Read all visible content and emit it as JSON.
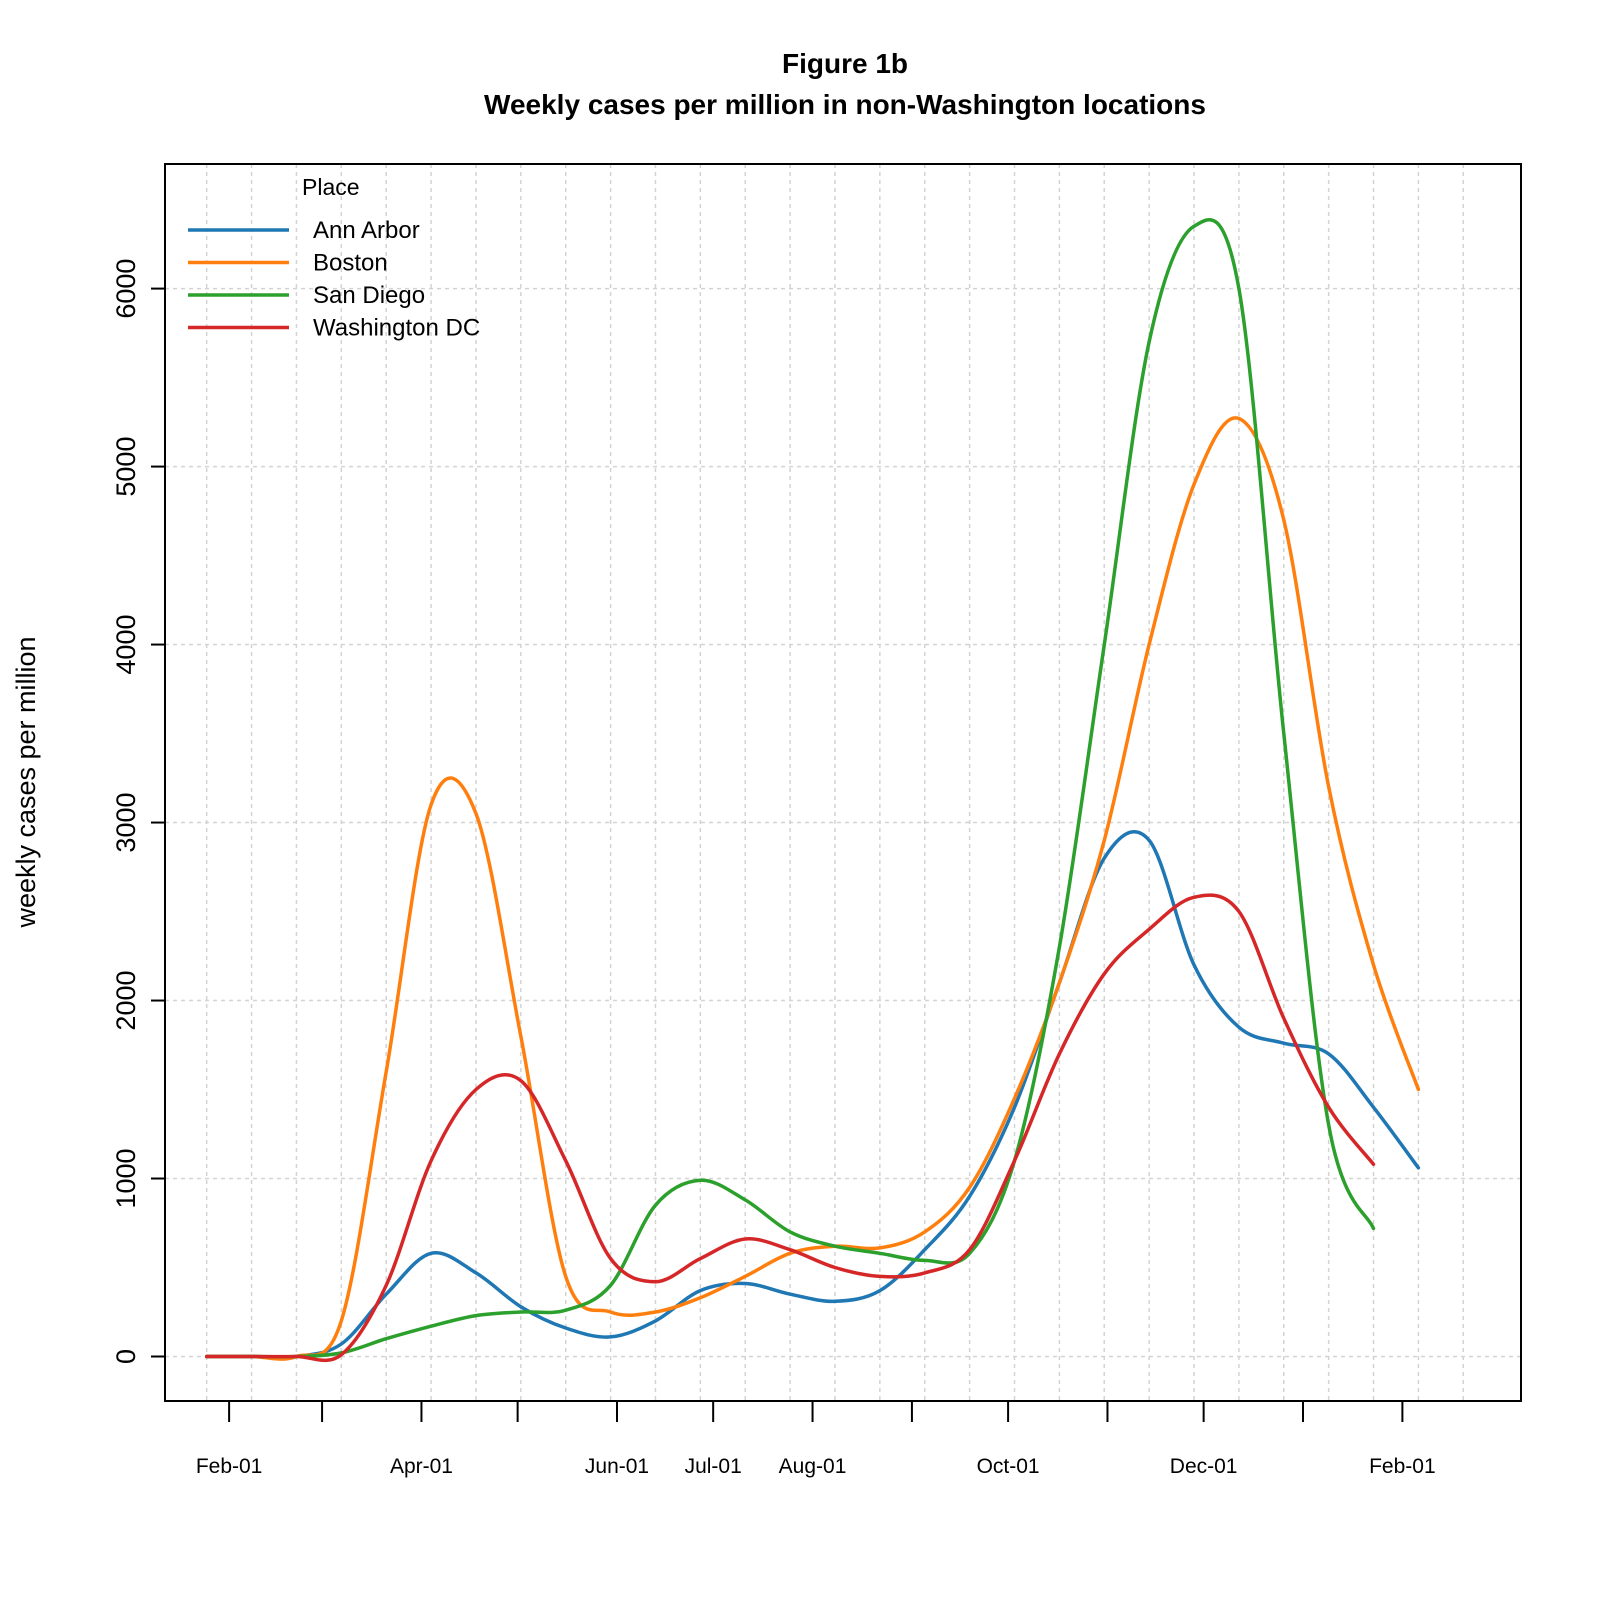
{
  "chart_data": {
    "type": "line",
    "title": "Figure 1b",
    "subtitle": "Weekly cases per million in non-Washington locations",
    "xlabel": "",
    "ylabel": "weekly cases per million",
    "x_tick_labels": [
      "Feb-01",
      "Apr-01",
      "Jun-01",
      "Jul-01",
      "Aug-01",
      "Oct-01",
      "Dec-01",
      "Feb-01"
    ],
    "y_ticks": [
      0,
      1000,
      2000,
      3000,
      4000,
      5000,
      6000
    ],
    "ylim": [
      -250,
      6700
    ],
    "grid": true,
    "legend_title": "Place",
    "legend_position": "top-left",
    "x": [
      "2020-01-25",
      "2020-02-08",
      "2020-02-22",
      "2020-03-07",
      "2020-03-21",
      "2020-04-04",
      "2020-04-18",
      "2020-05-02",
      "2020-05-16",
      "2020-05-30",
      "2020-06-13",
      "2020-06-27",
      "2020-07-11",
      "2020-07-25",
      "2020-08-08",
      "2020-08-22",
      "2020-09-05",
      "2020-09-19",
      "2020-10-03",
      "2020-10-17",
      "2020-10-31",
      "2020-11-14",
      "2020-11-28",
      "2020-12-12",
      "2020-12-26",
      "2021-01-09",
      "2021-01-23",
      "2021-02-06",
      "2021-02-20"
    ],
    "series": [
      {
        "name": "Ann Arbor",
        "color": "#1f77b4",
        "values": [
          0,
          0,
          0,
          70,
          350,
          580,
          470,
          280,
          160,
          110,
          200,
          370,
          410,
          350,
          310,
          370,
          600,
          900,
          1400,
          2100,
          2800,
          2900,
          2200,
          1850,
          1760,
          1700,
          1400,
          1060,
          null
        ]
      },
      {
        "name": "Boston",
        "color": "#ff7f0e",
        "values": [
          0,
          0,
          0,
          200,
          1600,
          3100,
          3050,
          1800,
          450,
          250,
          250,
          330,
          450,
          580,
          620,
          610,
          700,
          950,
          1450,
          2100,
          2900,
          4000,
          4900,
          5270,
          4700,
          3200,
          2200,
          1500,
          null
        ]
      },
      {
        "name": "San Diego",
        "color": "#2ca02c",
        "values": [
          0,
          0,
          0,
          20,
          100,
          170,
          230,
          250,
          260,
          400,
          850,
          990,
          880,
          700,
          620,
          580,
          540,
          580,
          1100,
          2300,
          4000,
          5700,
          6350,
          6000,
          3500,
          1300,
          720,
          null,
          null
        ]
      },
      {
        "name": "Washington DC",
        "color": "#d62728",
        "values": [
          0,
          0,
          0,
          10,
          400,
          1100,
          1500,
          1550,
          1100,
          550,
          420,
          550,
          660,
          600,
          500,
          450,
          470,
          600,
          1100,
          1700,
          2150,
          2400,
          2580,
          2500,
          1900,
          1400,
          1080,
          null,
          null
        ]
      }
    ]
  }
}
